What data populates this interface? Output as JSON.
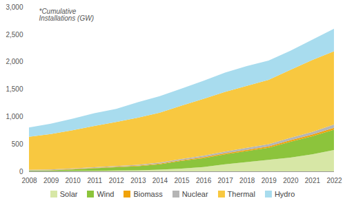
{
  "chart_data": {
    "type": "area",
    "stacked": true,
    "grid": false,
    "legend": "bottom",
    "annotation": "*Cumulative\nInstallations (GW)",
    "x": [
      2008,
      2009,
      2010,
      2011,
      2012,
      2013,
      2014,
      2015,
      2016,
      2017,
      2018,
      2019,
      2020,
      2021,
      2022
    ],
    "xlim": [
      2008,
      2022
    ],
    "xticks": [
      2008,
      2009,
      2010,
      2011,
      2012,
      2013,
      2014,
      2015,
      2016,
      2017,
      2018,
      2019,
      2020,
      2021,
      2022
    ],
    "ylim": [
      0,
      3000
    ],
    "yticks": [
      0,
      500,
      {
        "value": 1000,
        "label": "1,000"
      },
      {
        "value": 1500,
        "label": "1,500"
      },
      {
        "value": 2000,
        "label": "2,000"
      },
      {
        "value": 2500,
        "label": "2,500"
      },
      {
        "value": 3000,
        "label": "3,000"
      }
    ],
    "series": [
      {
        "name": "Solar",
        "color": "#d7e7a6",
        "values": [
          2,
          3,
          5,
          10,
          15,
          20,
          30,
          50,
          80,
          130,
          170,
          210,
          250,
          310,
          390
        ]
      },
      {
        "name": "Wind",
        "color": "#8cc43c",
        "values": [
          10,
          15,
          30,
          45,
          60,
          75,
          100,
          140,
          160,
          180,
          200,
          220,
          290,
          330,
          370
        ]
      },
      {
        "name": "Biomass",
        "color": "#f0a30a",
        "values": [
          5,
          5,
          8,
          8,
          10,
          10,
          12,
          15,
          18,
          20,
          22,
          25,
          28,
          30,
          35
        ]
      },
      {
        "name": "Nuclear",
        "color": "#b5b5b5",
        "values": [
          10,
          10,
          10,
          12,
          12,
          15,
          18,
          22,
          28,
          32,
          38,
          40,
          45,
          50,
          60
        ]
      },
      {
        "name": "Thermal",
        "color": "#f8c840",
        "values": [
          603,
          647,
          697,
          755,
          803,
          860,
          910,
          973,
          1034,
          1088,
          1130,
          1175,
          1237,
          1310,
          1335
        ]
      },
      {
        "name": "Hydro",
        "color": "#a8dcee",
        "values": [
          170,
          190,
          210,
          230,
          240,
          280,
          300,
          310,
          330,
          350,
          360,
          350,
          350,
          370,
          410
        ]
      }
    ]
  }
}
